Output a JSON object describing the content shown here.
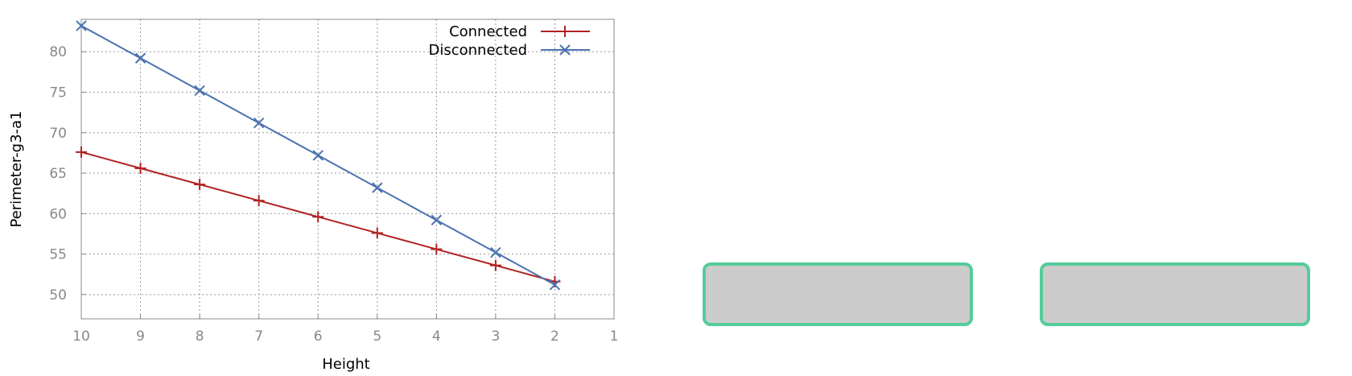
{
  "chart_data": {
    "type": "line",
    "xlabel": "Height",
    "ylabel": "Perimeter-g3-a1",
    "xlim": [
      10,
      1
    ],
    "ylim": [
      47,
      84
    ],
    "x_reversed": true,
    "grid": true,
    "legend_position": "top-right",
    "x_ticks": [
      10,
      9,
      8,
      7,
      6,
      5,
      4,
      3,
      2,
      1
    ],
    "y_ticks": [
      50,
      55,
      60,
      65,
      70,
      75,
      80
    ],
    "series": [
      {
        "name": "Connected",
        "marker": "plus",
        "color": "#b22222",
        "x": [
          10,
          9,
          8,
          7,
          6,
          5,
          4,
          3,
          2
        ],
        "y": [
          67.6,
          65.6,
          63.6,
          61.6,
          59.6,
          57.6,
          55.6,
          53.6,
          51.6
        ]
      },
      {
        "name": "Disconnected",
        "marker": "cross",
        "color": "#4a72b0",
        "x": [
          10,
          9,
          8,
          7,
          6,
          5,
          4,
          3,
          2
        ],
        "y": [
          83.2,
          79.2,
          75.2,
          71.2,
          67.2,
          63.2,
          59.2,
          55.2,
          51.2
        ]
      }
    ]
  },
  "panels": {
    "fill_color": "#cccccc",
    "border_color": "#55cc99"
  }
}
